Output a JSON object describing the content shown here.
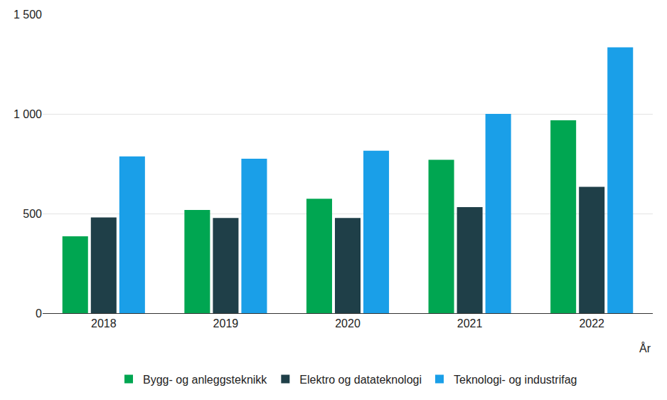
{
  "chart_data": {
    "type": "bar",
    "xlabel": "År",
    "categories": [
      "2018",
      "2019",
      "2020",
      "2021",
      "2022"
    ],
    "series": [
      {
        "name": "Bygg- og anleggsteknikk",
        "color": "#00a651",
        "values": [
          386,
          518,
          574,
          770,
          968
        ]
      },
      {
        "name": "Elektro og datateknologi",
        "color": "#1f3f48",
        "values": [
          480,
          478,
          478,
          532,
          634
        ]
      },
      {
        "name": "Teknologi- og industrifag",
        "color": "#1a9fe8",
        "values": [
          787,
          775,
          815,
          1000,
          1334
        ]
      }
    ],
    "ylim": [
      0,
      1500
    ],
    "yticks": [
      0,
      500,
      {
        "value": 1000,
        "label": "1 000"
      },
      {
        "value": 1500,
        "label": "1 500"
      }
    ],
    "grid": true,
    "legend": "bottom"
  }
}
